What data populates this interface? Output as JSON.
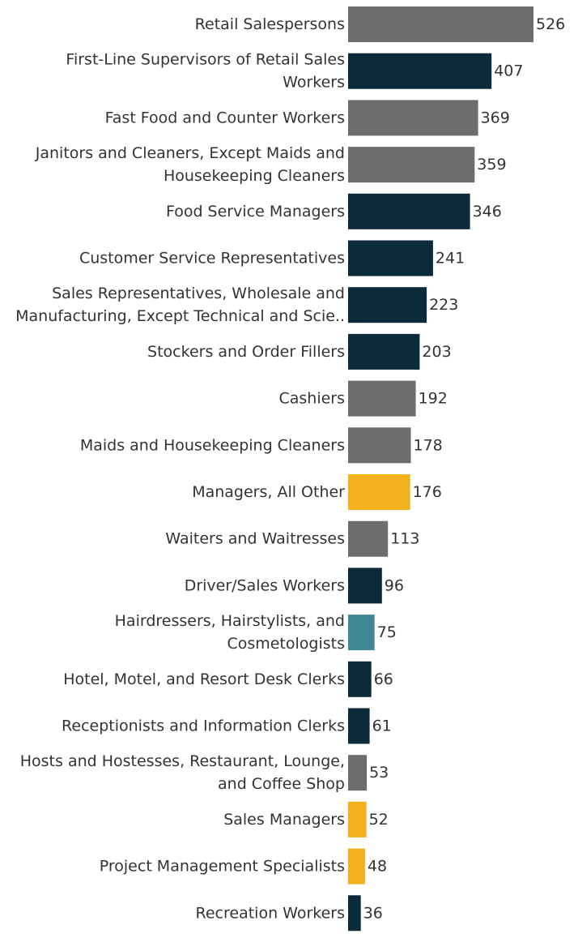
{
  "chart_data": {
    "type": "bar",
    "orientation": "horizontal",
    "title": "",
    "xlabel": "",
    "ylabel": "",
    "grid": false,
    "legend": "none",
    "xlim": [
      0,
      526
    ],
    "colors": {
      "gray": "#6d6d6d",
      "navy": "#0b2a3a",
      "gold": "#f2b11c",
      "teal": "#3f8896"
    },
    "bars": [
      {
        "label_lines": [
          "Retail Salespersons"
        ],
        "value": 526,
        "color_key": "gray"
      },
      {
        "label_lines": [
          "First-Line Supervisors of Retail Sales",
          "Workers"
        ],
        "value": 407,
        "color_key": "navy"
      },
      {
        "label_lines": [
          "Fast Food and Counter Workers"
        ],
        "value": 369,
        "color_key": "gray"
      },
      {
        "label_lines": [
          "Janitors and Cleaners, Except Maids and",
          "Housekeeping Cleaners"
        ],
        "value": 359,
        "color_key": "gray"
      },
      {
        "label_lines": [
          "Food Service Managers"
        ],
        "value": 346,
        "color_key": "navy"
      },
      {
        "label_lines": [
          "Customer Service Representatives"
        ],
        "value": 241,
        "color_key": "navy"
      },
      {
        "label_lines": [
          "Sales Representatives, Wholesale and",
          "Manufacturing, Except Technical and Scie.."
        ],
        "value": 223,
        "color_key": "navy"
      },
      {
        "label_lines": [
          "Stockers and Order Fillers"
        ],
        "value": 203,
        "color_key": "navy"
      },
      {
        "label_lines": [
          "Cashiers"
        ],
        "value": 192,
        "color_key": "gray"
      },
      {
        "label_lines": [
          "Maids and Housekeeping Cleaners"
        ],
        "value": 178,
        "color_key": "gray"
      },
      {
        "label_lines": [
          "Managers, All Other"
        ],
        "value": 176,
        "color_key": "gold"
      },
      {
        "label_lines": [
          "Waiters and Waitresses"
        ],
        "value": 113,
        "color_key": "gray"
      },
      {
        "label_lines": [
          "Driver/Sales Workers"
        ],
        "value": 96,
        "color_key": "navy"
      },
      {
        "label_lines": [
          "Hairdressers, Hairstylists, and",
          "Cosmetologists"
        ],
        "value": 75,
        "color_key": "teal"
      },
      {
        "label_lines": [
          "Hotel, Motel, and Resort Desk Clerks"
        ],
        "value": 66,
        "color_key": "navy"
      },
      {
        "label_lines": [
          "Receptionists and Information Clerks"
        ],
        "value": 61,
        "color_key": "navy"
      },
      {
        "label_lines": [
          "Hosts and Hostesses, Restaurant, Lounge,",
          "and Coffee Shop"
        ],
        "value": 53,
        "color_key": "gray"
      },
      {
        "label_lines": [
          "Sales Managers"
        ],
        "value": 52,
        "color_key": "gold"
      },
      {
        "label_lines": [
          "Project Management Specialists"
        ],
        "value": 48,
        "color_key": "gold"
      },
      {
        "label_lines": [
          "Recreation Workers"
        ],
        "value": 36,
        "color_key": "navy"
      }
    ]
  }
}
